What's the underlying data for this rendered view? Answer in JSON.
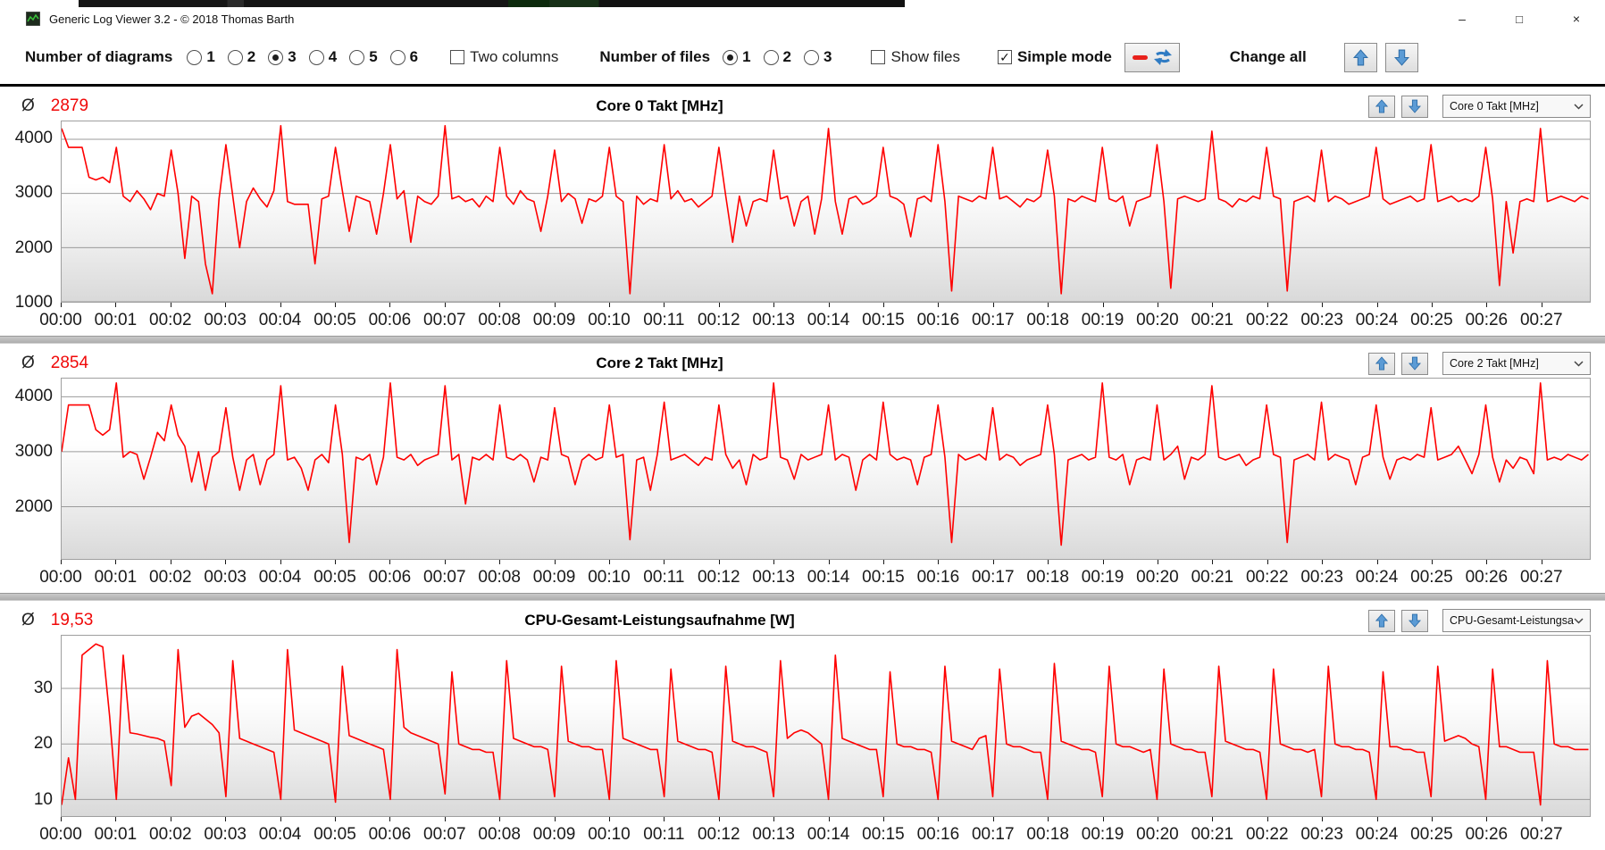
{
  "window": {
    "title": "Generic Log Viewer 3.2 - © 2018 Thomas Barth",
    "controls": {
      "minimize_icon": "–",
      "maximize_icon": "□",
      "close_icon": "×"
    }
  },
  "toolbar": {
    "diagrams_label": "Number of diagrams",
    "diagram_options": [
      "1",
      "2",
      "3",
      "4",
      "5",
      "6"
    ],
    "diagrams_selected": "3",
    "two_columns_label": "Two columns",
    "two_columns_checked": false,
    "files_label": "Number of files",
    "file_options": [
      "1",
      "2",
      "3"
    ],
    "files_selected": "1",
    "show_files_label": "Show files",
    "show_files_checked": false,
    "simple_mode_label": "Simple mode",
    "simple_mode_checked": true,
    "change_all_label": "Change all"
  },
  "chart_data": {
    "avg_symbol": "Ø",
    "line_color": "#ff0000",
    "grid": true,
    "x_tick_labels": [
      "00:00",
      "00:01",
      "00:02",
      "00:03",
      "00:04",
      "00:05",
      "00:06",
      "00:07",
      "00:08",
      "00:09",
      "00:10",
      "00:11",
      "00:12",
      "00:13",
      "00:14",
      "00:15",
      "00:16",
      "00:17",
      "00:18",
      "00:19",
      "00:20",
      "00:21",
      "00:22",
      "00:23",
      "00:24",
      "00:25",
      "00:26",
      "00:27"
    ],
    "charts": [
      {
        "type": "line",
        "title": "Core 0 Takt [MHz]",
        "avg": "2879",
        "dropdown_value": "Core 0 Takt [MHz]",
        "ylim": [
          1000,
          4330
        ],
        "yticks": [
          1000,
          2000,
          3000,
          4000
        ],
        "xlim": [
          0,
          27.9
        ],
        "x_step_minutes": 0.125,
        "values": [
          4200,
          3850,
          3850,
          3850,
          3300,
          3250,
          3300,
          3200,
          3850,
          2950,
          2850,
          3050,
          2900,
          2700,
          3000,
          2950,
          3800,
          3000,
          1800,
          2950,
          2850,
          1700,
          1150,
          2900,
          3900,
          2950,
          2000,
          2850,
          3100,
          2900,
          2750,
          3050,
          4250,
          2850,
          2800,
          2800,
          2800,
          1700,
          2900,
          2950,
          3850,
          3050,
          2300,
          2950,
          2900,
          2850,
          2250,
          3000,
          3900,
          2900,
          3050,
          2100,
          2950,
          2850,
          2800,
          2950,
          4250,
          2900,
          2950,
          2850,
          2900,
          2750,
          2950,
          2850,
          3850,
          2950,
          2800,
          3050,
          2900,
          2850,
          2300,
          2950,
          3800,
          2850,
          3000,
          2900,
          2450,
          2900,
          2850,
          2950,
          3850,
          2950,
          2850,
          1150,
          2950,
          2800,
          2900,
          2850,
          3900,
          2900,
          3050,
          2850,
          2900,
          2750,
          2850,
          2950,
          3850,
          2950,
          2100,
          2950,
          2400,
          2850,
          2900,
          2850,
          3800,
          2900,
          2950,
          2400,
          2850,
          2950,
          2250,
          2900,
          4200,
          2850,
          2250,
          2900,
          2950,
          2800,
          2850,
          2950,
          3850,
          2950,
          2900,
          2800,
          2200,
          2900,
          2950,
          2850,
          3900,
          2850,
          1200,
          2950,
          2900,
          2850,
          2950,
          2900,
          3850,
          2900,
          2950,
          2850,
          2750,
          2900,
          2850,
          2950,
          3800,
          2950,
          1150,
          2900,
          2850,
          2950,
          2900,
          2850,
          3850,
          2900,
          2850,
          2950,
          2400,
          2850,
          2900,
          2950,
          3900,
          2850,
          1250,
          2900,
          2950,
          2900,
          2850,
          2900,
          4150,
          2900,
          2850,
          2750,
          2900,
          2850,
          2950,
          2900,
          3850,
          2950,
          2900,
          1200,
          2850,
          2900,
          2950,
          2850,
          3800,
          2850,
          2950,
          2900,
          2800,
          2850,
          2900,
          2950,
          3850,
          2900,
          2800,
          2850,
          2900,
          2950,
          2850,
          2900,
          3900,
          2850,
          2900,
          2950,
          2850,
          2900,
          2850,
          2950,
          3850,
          2900,
          1300,
          2850,
          1900,
          2850,
          2900,
          2850,
          4200,
          2850,
          2900,
          2950,
          2900,
          2850,
          2950,
          2900
        ]
      },
      {
        "type": "line",
        "title": "Core 2 Takt [MHz]",
        "avg": "2854",
        "dropdown_value": "Core 2 Takt [MHz]",
        "ylim": [
          1050,
          4330
        ],
        "yticks": [
          2000,
          3000,
          4000
        ],
        "xlim": [
          0,
          27.9
        ],
        "x_step_minutes": 0.125,
        "values": [
          3000,
          3850,
          3850,
          3850,
          3850,
          3400,
          3300,
          3400,
          4250,
          2900,
          3000,
          2950,
          2500,
          2900,
          3350,
          3200,
          3850,
          3300,
          3100,
          2450,
          3000,
          2300,
          2900,
          3000,
          3800,
          2900,
          2300,
          2850,
          2950,
          2400,
          2850,
          2950,
          4200,
          2850,
          2900,
          2700,
          2300,
          2850,
          2950,
          2800,
          3850,
          2950,
          1350,
          2900,
          2850,
          2950,
          2400,
          2900,
          4250,
          2900,
          2850,
          2950,
          2750,
          2850,
          2900,
          2950,
          4200,
          2850,
          2950,
          2050,
          2900,
          2850,
          2950,
          2850,
          3850,
          2900,
          2850,
          2950,
          2850,
          2450,
          2900,
          2850,
          3800,
          2950,
          2900,
          2400,
          2850,
          2950,
          2850,
          2900,
          3850,
          2900,
          2950,
          1400,
          2850,
          2900,
          2300,
          2950,
          3900,
          2850,
          2900,
          2950,
          2850,
          2750,
          2900,
          2850,
          3850,
          2950,
          2700,
          2850,
          2400,
          2950,
          2850,
          2900,
          4250,
          2900,
          2850,
          2500,
          2950,
          2850,
          2900,
          2950,
          3850,
          2850,
          2950,
          2900,
          2300,
          2850,
          2950,
          2850,
          3900,
          2950,
          2850,
          2900,
          2850,
          2400,
          2900,
          2950,
          3850,
          2900,
          1350,
          2950,
          2850,
          2900,
          2950,
          2850,
          3800,
          2850,
          2950,
          2900,
          2750,
          2850,
          2900,
          2950,
          3850,
          2950,
          1300,
          2850,
          2900,
          2950,
          2850,
          2900,
          4250,
          2900,
          2850,
          2950,
          2400,
          2850,
          2900,
          2850,
          3850,
          2850,
          2950,
          3100,
          2500,
          2900,
          2850,
          2950,
          4200,
          2900,
          2850,
          2900,
          2950,
          2750,
          2850,
          2900,
          3850,
          2950,
          2900,
          1350,
          2850,
          2900,
          2950,
          2850,
          3900,
          2850,
          2950,
          2900,
          2850,
          2400,
          2900,
          2950,
          3850,
          2900,
          2500,
          2850,
          2900,
          2850,
          2950,
          2900,
          3800,
          2850,
          2900,
          2950,
          3100,
          2850,
          2600,
          2950,
          3850,
          2900,
          2450,
          2850,
          2700,
          2900,
          2850,
          2600,
          4250,
          2850,
          2900,
          2850,
          2950,
          2900,
          2850,
          2950
        ]
      },
      {
        "type": "line",
        "title": "CPU-Gesamt-Leistungsaufnahme [W]",
        "avg": "19,53",
        "dropdown_value": "CPU-Gesamt-Leistungsau",
        "ylim": [
          7,
          39.5
        ],
        "yticks": [
          10,
          20,
          30
        ],
        "xlim": [
          0,
          27.9
        ],
        "x_step_minutes": 0.125,
        "values": [
          9,
          17.5,
          10,
          36,
          37,
          38,
          37.5,
          25,
          10,
          36,
          22,
          21.8,
          21.5,
          21.2,
          21,
          20.5,
          12.5,
          37,
          23,
          25,
          25.5,
          24.5,
          23.5,
          22,
          10.5,
          35,
          21,
          20.5,
          20,
          19.5,
          19,
          18.5,
          10,
          37,
          22.5,
          22,
          21.5,
          21,
          20.5,
          20,
          9.5,
          34,
          21.5,
          21,
          20.5,
          20,
          19.5,
          19,
          10,
          37,
          23,
          22,
          21.5,
          21,
          20.5,
          20,
          11,
          33,
          20,
          19.5,
          19,
          19,
          18.5,
          18.5,
          10,
          35,
          21,
          20.5,
          20,
          19.5,
          19.5,
          19,
          10.5,
          34,
          20.5,
          20,
          19.5,
          19.5,
          19,
          19,
          10,
          35,
          21,
          20.5,
          20,
          19.5,
          19,
          19,
          10.5,
          33.5,
          20.5,
          20,
          19.5,
          19,
          19,
          18.5,
          10,
          34,
          20.5,
          20,
          19.5,
          19.5,
          19,
          18.5,
          10.5,
          35,
          21,
          22,
          22.5,
          22,
          21,
          20,
          10,
          36,
          21,
          20.5,
          20,
          19.5,
          19,
          19,
          10.5,
          33,
          20,
          19.5,
          19.5,
          19,
          19,
          18.5,
          10,
          34,
          20.5,
          20,
          19.5,
          19,
          21,
          21.5,
          10.5,
          33.5,
          20,
          19.5,
          19.5,
          19,
          18.5,
          18.5,
          10,
          34.5,
          20.5,
          20,
          19.5,
          19,
          19,
          18.5,
          10.5,
          34,
          20,
          19.5,
          19.5,
          19,
          18.5,
          19,
          10,
          33.5,
          20,
          19.5,
          19,
          19,
          18.5,
          18.5,
          10.5,
          34,
          20.5,
          20,
          19.5,
          19,
          19,
          18.5,
          10,
          33.5,
          20,
          19.5,
          19,
          19,
          18.5,
          19,
          10.5,
          34,
          20,
          19.5,
          19.5,
          19,
          19,
          18.5,
          10,
          33,
          19.5,
          19.5,
          19,
          19,
          18.5,
          18.5,
          10.5,
          34,
          20.5,
          21,
          21.5,
          21,
          20,
          19.5,
          10,
          33.5,
          19.5,
          19.5,
          19,
          18.5,
          18.5,
          18.5,
          9,
          35,
          20,
          19.5,
          19.5,
          19,
          19,
          19
        ]
      }
    ]
  }
}
